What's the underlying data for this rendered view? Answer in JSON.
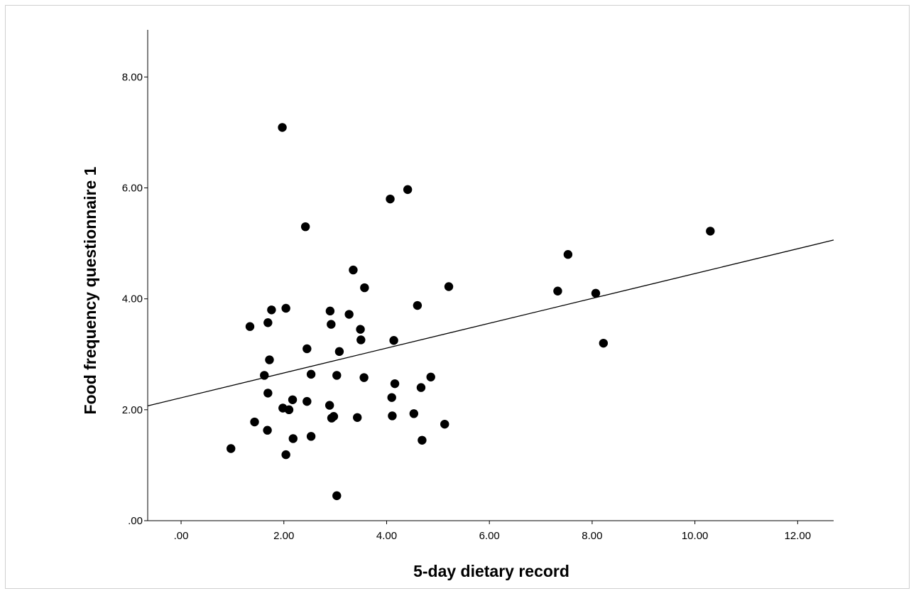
{
  "chart_data": {
    "type": "scatter",
    "title": "",
    "xlabel": "5-day dietary record",
    "ylabel": "Food frequency questionnaire 1",
    "xlim": [
      -0.65,
      12.7
    ],
    "ylim": [
      0,
      8.85
    ],
    "xticks": [
      0,
      2,
      4,
      6,
      8,
      10,
      12
    ],
    "yticks": [
      0,
      2,
      4,
      6,
      8
    ],
    "xtick_labels": [
      ".00",
      "2.00",
      "4.00",
      "6.00",
      "8.00",
      "10.00",
      "12.00"
    ],
    "ytick_labels": [
      ".00",
      "2.00",
      "4.00",
      "6.00",
      "8.00"
    ],
    "grid": false,
    "legend": "none",
    "marker_color": "#000000",
    "fit_line": {
      "type": "linear",
      "points": [
        [
          -0.65,
          2.07
        ],
        [
          12.7,
          5.06
        ]
      ]
    },
    "points": [
      [
        0.97,
        1.3
      ],
      [
        1.34,
        3.5
      ],
      [
        1.43,
        1.78
      ],
      [
        1.62,
        2.62
      ],
      [
        1.68,
        1.63
      ],
      [
        1.69,
        2.3
      ],
      [
        1.69,
        3.57
      ],
      [
        1.72,
        2.9
      ],
      [
        1.76,
        3.8
      ],
      [
        1.98,
        2.03
      ],
      [
        1.97,
        7.09
      ],
      [
        2.04,
        3.83
      ],
      [
        2.04,
        1.19
      ],
      [
        2.1,
        2.0
      ],
      [
        2.17,
        2.18
      ],
      [
        2.18,
        1.48
      ],
      [
        2.42,
        5.3
      ],
      [
        2.45,
        2.15
      ],
      [
        2.45,
        3.1
      ],
      [
        2.53,
        1.52
      ],
      [
        2.53,
        2.64
      ],
      [
        2.89,
        2.08
      ],
      [
        2.9,
        3.78
      ],
      [
        2.92,
        3.54
      ],
      [
        2.93,
        1.85
      ],
      [
        2.97,
        1.88
      ],
      [
        3.03,
        0.45
      ],
      [
        3.03,
        2.62
      ],
      [
        3.08,
        3.05
      ],
      [
        3.27,
        3.72
      ],
      [
        3.35,
        4.52
      ],
      [
        3.43,
        1.86
      ],
      [
        3.49,
        3.45
      ],
      [
        3.5,
        3.26
      ],
      [
        3.56,
        2.58
      ],
      [
        3.57,
        4.2
      ],
      [
        4.07,
        5.8
      ],
      [
        4.1,
        2.22
      ],
      [
        4.11,
        1.89
      ],
      [
        4.14,
        3.25
      ],
      [
        4.16,
        2.47
      ],
      [
        4.41,
        5.97
      ],
      [
        4.53,
        1.93
      ],
      [
        4.6,
        3.88
      ],
      [
        4.67,
        2.4
      ],
      [
        4.69,
        1.45
      ],
      [
        4.86,
        2.59
      ],
      [
        5.13,
        1.74
      ],
      [
        5.21,
        4.22
      ],
      [
        7.33,
        4.14
      ],
      [
        7.53,
        4.8
      ],
      [
        8.07,
        4.1
      ],
      [
        8.22,
        3.2
      ],
      [
        10.3,
        5.22
      ]
    ]
  }
}
